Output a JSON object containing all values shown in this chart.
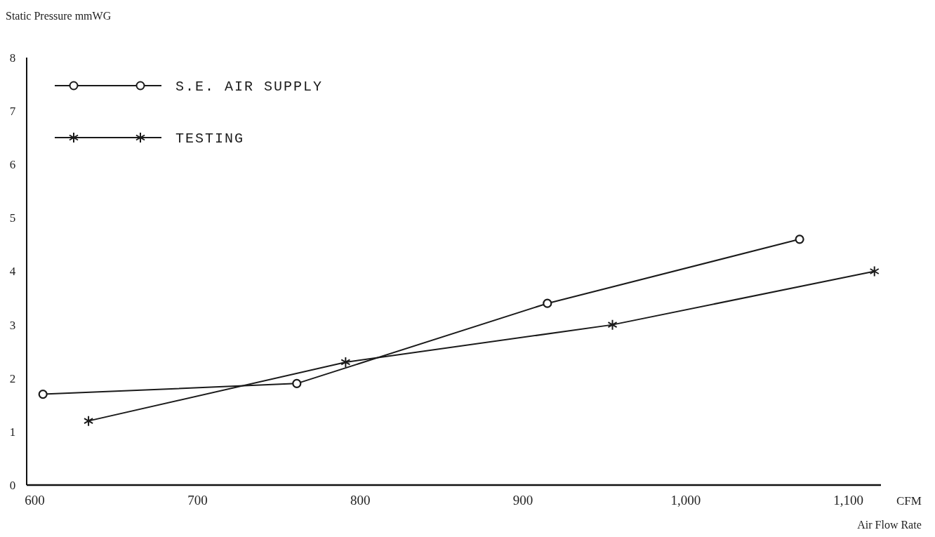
{
  "chart_data": {
    "type": "line",
    "ylabel": "Static Pressure  mmWG",
    "xlabel": "Air Flow Rate",
    "annotations": [
      "CFM"
    ],
    "xlim": [
      595,
      1120
    ],
    "ylim": [
      0,
      8
    ],
    "xticks": [
      600,
      700,
      800,
      900,
      {
        "value": 1000,
        "label": "1,000"
      },
      {
        "value": 1100,
        "label": "1,100"
      }
    ],
    "yticks": [
      0,
      1,
      2,
      3,
      4,
      5,
      6,
      7,
      8
    ],
    "legend": "top left",
    "grid": false,
    "series": [
      {
        "name": "S.E. AIR SUPPLY",
        "color": "#1a1a1a",
        "marker": "circle",
        "x": [
          605,
          761,
          915,
          1070
        ],
        "values": [
          1.7,
          1.9,
          3.4,
          4.6
        ]
      },
      {
        "name": "TESTING",
        "color": "#1a1a1a",
        "marker": "cross",
        "x": [
          633,
          791,
          955,
          1116
        ],
        "values": [
          1.2,
          2.3,
          3.0,
          4.0
        ]
      }
    ]
  }
}
